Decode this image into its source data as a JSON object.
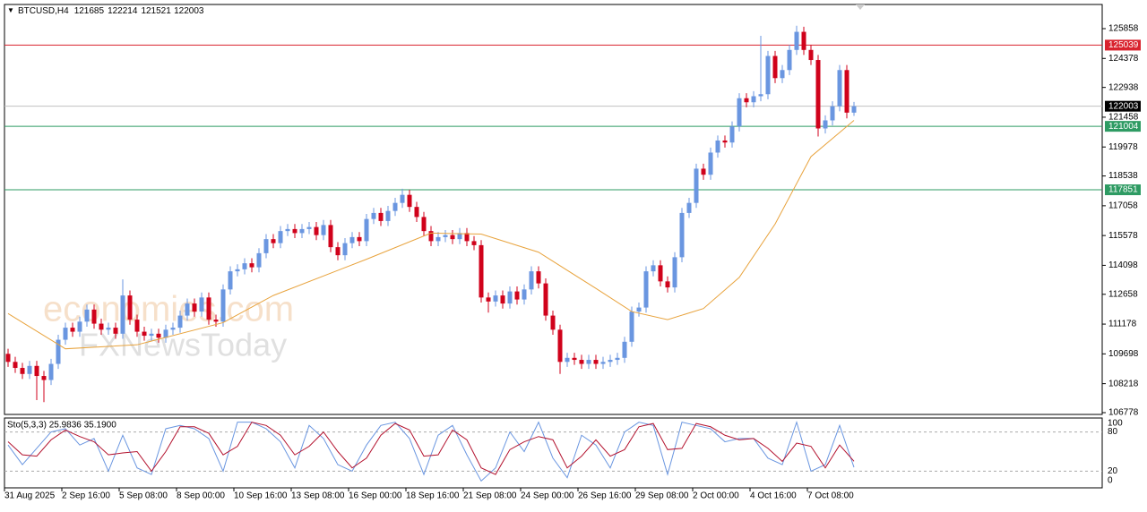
{
  "header": {
    "symbol": "BTCUSD,H4"
  },
  "chart_data": {
    "type": "candlestick",
    "categories": [
      "31 Aug 2025",
      null,
      null,
      null,
      null,
      null,
      null,
      null,
      "2 Sep 16:00",
      null,
      null,
      null,
      null,
      null,
      null,
      null,
      "5 Sep 08:00",
      null,
      null,
      null,
      null,
      null,
      null,
      null,
      "8 Sep 00:00",
      null,
      null,
      null,
      null,
      null,
      null,
      null,
      "10 Sep 16:00",
      null,
      null,
      null,
      null,
      null,
      null,
      null,
      "13 Sep 08:00",
      null,
      null,
      null,
      null,
      null,
      null,
      null,
      "16 Sep 00:00",
      null,
      null,
      null,
      null,
      null,
      null,
      null,
      "18 Sep 16:00",
      null,
      null,
      null,
      null,
      null,
      null,
      null,
      "21 Sep 08:00",
      null,
      null,
      null,
      null,
      null,
      null,
      null,
      "24 Sep 00:00",
      null,
      null,
      null,
      null,
      null,
      null,
      null,
      "26 Sep 16:00",
      null,
      null,
      null,
      null,
      null,
      null,
      null,
      "29 Sep 08:00",
      null,
      null,
      null,
      null,
      null,
      null,
      null,
      "2 Oct 00:00",
      null,
      null,
      null,
      null,
      null,
      null,
      null,
      "4 Oct 16:00",
      null,
      null,
      null,
      null,
      null,
      null,
      null,
      "7 Oct 08:00",
      null,
      null,
      null,
      null,
      null,
      null
    ],
    "open": [
      109700,
      109300,
      109000,
      108700,
      109100,
      108600,
      108400,
      109200,
      110400,
      111000,
      110800,
      111300,
      111900,
      111200,
      110900,
      111000,
      110700,
      112600,
      111400,
      110800,
      110600,
      110700,
      110500,
      110900,
      111000,
      111600,
      112200,
      111800,
      112500,
      111400,
      111300,
      112900,
      113800,
      113900,
      114200,
      114000,
      114700,
      115400,
      115200,
      115800,
      115900,
      115700,
      115900,
      116000,
      115600,
      116100,
      115000,
      114600,
      115200,
      115500,
      115300,
      116400,
      116700,
      116300,
      116800,
      117200,
      117600,
      117000,
      116500,
      115800,
      115300,
      115500,
      115600,
      115400,
      115700,
      115300,
      115100,
      112500,
      112300,
      112600,
      112200,
      112800,
      112400,
      112900,
      113800,
      113200,
      111600,
      110900,
      109300,
      109500,
      109400,
      109200,
      109400,
      109200,
      109300,
      109400,
      109500,
      110300,
      111800,
      112000,
      113800,
      114100,
      113300,
      113000,
      114500,
      116700,
      117200,
      118900,
      118600,
      119700,
      120300,
      120200,
      121000,
      122400,
      122200,
      122500,
      122600,
      124500,
      123400,
      123800,
      124800,
      125700,
      124800,
      124300,
      120900,
      121300,
      122000,
      123800,
      121685
    ],
    "high": [
      109950,
      109550,
      109250,
      109350,
      109350,
      108850,
      109450,
      110650,
      111250,
      111250,
      111550,
      112150,
      112150,
      111450,
      111250,
      111250,
      113400,
      112850,
      111650,
      111050,
      110950,
      110950,
      111150,
      111250,
      111850,
      112450,
      112450,
      112750,
      112750,
      111650,
      113150,
      114050,
      114150,
      114450,
      114450,
      114950,
      115650,
      115650,
      116050,
      116150,
      116150,
      116150,
      116250,
      116250,
      116350,
      116350,
      115250,
      115450,
      115750,
      115750,
      116650,
      116950,
      116950,
      117050,
      117450,
      117900,
      117850,
      117250,
      116750,
      116050,
      115750,
      115850,
      115850,
      115950,
      115950,
      115550,
      115350,
      112750,
      112850,
      112850,
      113050,
      113050,
      113150,
      114050,
      114050,
      113450,
      111850,
      111150,
      109750,
      109750,
      109650,
      109650,
      109650,
      109550,
      109650,
      109750,
      110550,
      112050,
      112250,
      114050,
      114350,
      114350,
      113550,
      114750,
      116950,
      117450,
      119150,
      119150,
      119950,
      120550,
      120550,
      121250,
      122650,
      122650,
      122750,
      125500,
      124750,
      124750,
      124050,
      125050,
      126000,
      125950,
      125050,
      124550,
      121550,
      122250,
      124050,
      124050,
      122214
    ],
    "low": [
      109050,
      108750,
      108450,
      108450,
      107400,
      107300,
      108150,
      108950,
      110150,
      110550,
      110550,
      111050,
      110950,
      110650,
      110650,
      110450,
      110450,
      111150,
      110550,
      110350,
      110350,
      110250,
      110250,
      110650,
      110750,
      111350,
      111550,
      111550,
      111150,
      111050,
      111050,
      112650,
      113550,
      113650,
      113750,
      113750,
      114450,
      114950,
      114950,
      115550,
      115450,
      115450,
      115650,
      115350,
      115350,
      114750,
      114350,
      114350,
      114950,
      115050,
      115050,
      116150,
      116050,
      116050,
      116550,
      116950,
      116750,
      116250,
      115550,
      115050,
      115050,
      115250,
      115150,
      115150,
      115050,
      114850,
      112250,
      111750,
      112050,
      111950,
      111950,
      112150,
      112150,
      112650,
      112950,
      111350,
      110650,
      108700,
      109050,
      109150,
      108950,
      108950,
      108950,
      108950,
      109050,
      109150,
      109250,
      110050,
      111550,
      111750,
      113550,
      113050,
      112750,
      112750,
      114250,
      116450,
      116950,
      118350,
      118350,
      119450,
      119950,
      119950,
      120750,
      121950,
      121950,
      122250,
      122350,
      123150,
      123150,
      123550,
      124550,
      124550,
      124050,
      120500,
      120650,
      121050,
      121750,
      121400,
      121521
    ],
    "close": [
      109300,
      109000,
      108700,
      109100,
      108600,
      108400,
      109200,
      110400,
      111000,
      110800,
      111300,
      111900,
      111200,
      110900,
      111000,
      110700,
      112600,
      111400,
      110800,
      110600,
      110700,
      110500,
      110900,
      111000,
      111600,
      112200,
      111800,
      112500,
      111400,
      111300,
      112900,
      113800,
      113900,
      114200,
      114000,
      114700,
      115400,
      115200,
      115800,
      115900,
      115700,
      115900,
      116000,
      115600,
      116100,
      115000,
      114600,
      115200,
      115500,
      115300,
      116400,
      116700,
      116300,
      116800,
      117200,
      117600,
      117000,
      116500,
      115800,
      115300,
      115500,
      115600,
      115400,
      115700,
      115300,
      115100,
      112500,
      112300,
      112600,
      112200,
      112800,
      112400,
      112900,
      113800,
      113200,
      111600,
      110900,
      109300,
      109500,
      109400,
      109200,
      109400,
      109200,
      109300,
      109400,
      109500,
      110300,
      111800,
      112000,
      113800,
      114100,
      113300,
      113000,
      114500,
      116700,
      117200,
      118900,
      118600,
      119700,
      120300,
      120200,
      121000,
      122400,
      122200,
      122500,
      122600,
      124500,
      123400,
      123800,
      124800,
      125700,
      124800,
      124300,
      120900,
      121300,
      122000,
      123800,
      121685,
      122003
    ],
    "up_color": "#6a96e0",
    "down_color": "#d0021b",
    "ylim": [
      106689,
      127059
    ],
    "yticks": [
      125858,
      124378,
      122938,
      121458,
      119978,
      118538,
      117058,
      115578,
      114098,
      112658,
      111178,
      109698,
      108218,
      106778
    ],
    "levels": [
      {
        "value": 125039,
        "color": "#d9232e"
      },
      {
        "value": 121004,
        "color": "#2e9b63"
      },
      {
        "value": 117851,
        "color": "#2e9b63"
      }
    ],
    "current_color": "#000000",
    "ma": {
      "color": "#e8a33d",
      "x": [
        0,
        8,
        18,
        30,
        37,
        50,
        59,
        66,
        74,
        82,
        87,
        92,
        97,
        102,
        107,
        112,
        116,
        118
      ],
      "values": [
        111700,
        109950,
        110150,
        111250,
        112600,
        114400,
        115700,
        115650,
        114750,
        112950,
        111800,
        111400,
        111950,
        113500,
        116150,
        119500,
        120700,
        121300
      ]
    },
    "watermarks": [
      "economies.com",
      "FXNewsToday"
    ]
  },
  "stochastic": {
    "type": "line",
    "label": "Sto(5,3,3) 25.9836 35.1900",
    "ylim": [
      0,
      100
    ],
    "yticks": [
      100,
      80,
      20,
      0
    ],
    "levels": [
      80,
      20
    ],
    "x": [
      0,
      2,
      4,
      6,
      8,
      10,
      12,
      14,
      16,
      18,
      20,
      22,
      24,
      26,
      28,
      30,
      32,
      34,
      36,
      38,
      40,
      42,
      44,
      46,
      48,
      50,
      52,
      54,
      56,
      58,
      60,
      62,
      64,
      66,
      68,
      70,
      72,
      74,
      76,
      78,
      80,
      82,
      84,
      86,
      88,
      90,
      92,
      94,
      96,
      98,
      100,
      102,
      104,
      106,
      108,
      110,
      112,
      114,
      116,
      118
    ],
    "series": [
      {
        "color": "#6a96e0",
        "values": [
          60,
          30,
          55,
          80,
          85,
          60,
          70,
          20,
          75,
          25,
          15,
          85,
          90,
          85,
          70,
          20,
          95,
          95,
          85,
          65,
          25,
          90,
          70,
          30,
          20,
          60,
          90,
          95,
          70,
          15,
          75,
          90,
          45,
          5,
          25,
          80,
          50,
          95,
          40,
          10,
          75,
          60,
          25,
          80,
          95,
          90,
          15,
          95,
          90,
          85,
          65,
          70,
          70,
          40,
          30,
          95,
          20,
          30,
          90,
          25.9836
        ]
      },
      {
        "color": "#b3122e",
        "values": [
          65,
          45,
          43,
          68,
          83,
          73,
          65,
          45,
          48,
          50,
          20,
          50,
          88,
          88,
          78,
          45,
          58,
          95,
          90,
          75,
          45,
          58,
          80,
          50,
          25,
          40,
          75,
          93,
          83,
          43,
          45,
          83,
          68,
          25,
          15,
          53,
          65,
          73,
          68,
          25,
          43,
          68,
          43,
          53,
          88,
          93,
          53,
          55,
          93,
          88,
          75,
          68,
          70,
          55,
          35,
          63,
          58,
          25,
          60,
          35.19
        ]
      }
    ]
  }
}
